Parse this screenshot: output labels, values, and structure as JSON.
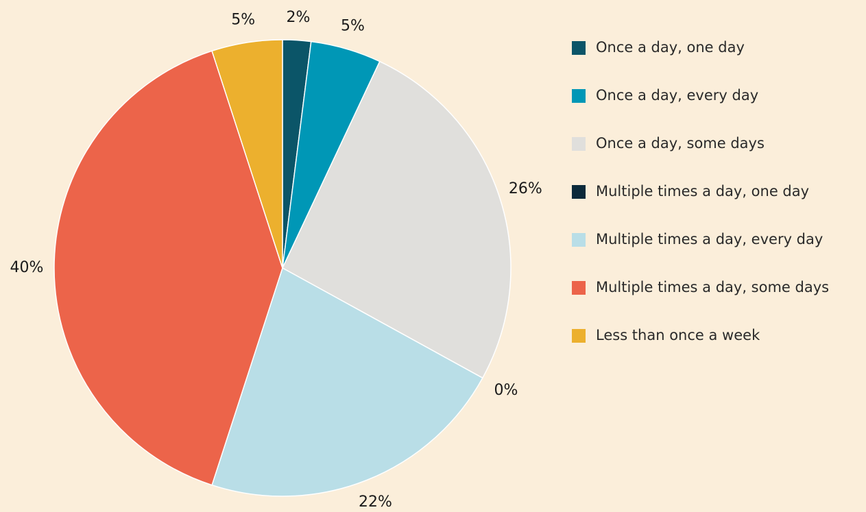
{
  "chart_data": {
    "type": "pie",
    "categories": [
      "Once a day, one day",
      "Once a day, every day",
      "Once a day, some days",
      "Multiple times a day, one day",
      "Multiple times a day, every day",
      "Multiple times a day, some days",
      "Less than once a week"
    ],
    "values": [
      2,
      5,
      26,
      0,
      22,
      40,
      5
    ],
    "value_labels": [
      "2%",
      "5%",
      "26%",
      "0%",
      "22%",
      "40%",
      "5%"
    ],
    "colors": [
      "#0b5568",
      "#0097b6",
      "#e0dfdc",
      "#0b2a3a",
      "#b9dee7",
      "#ec644a",
      "#ecb02e"
    ],
    "legend": "right"
  }
}
